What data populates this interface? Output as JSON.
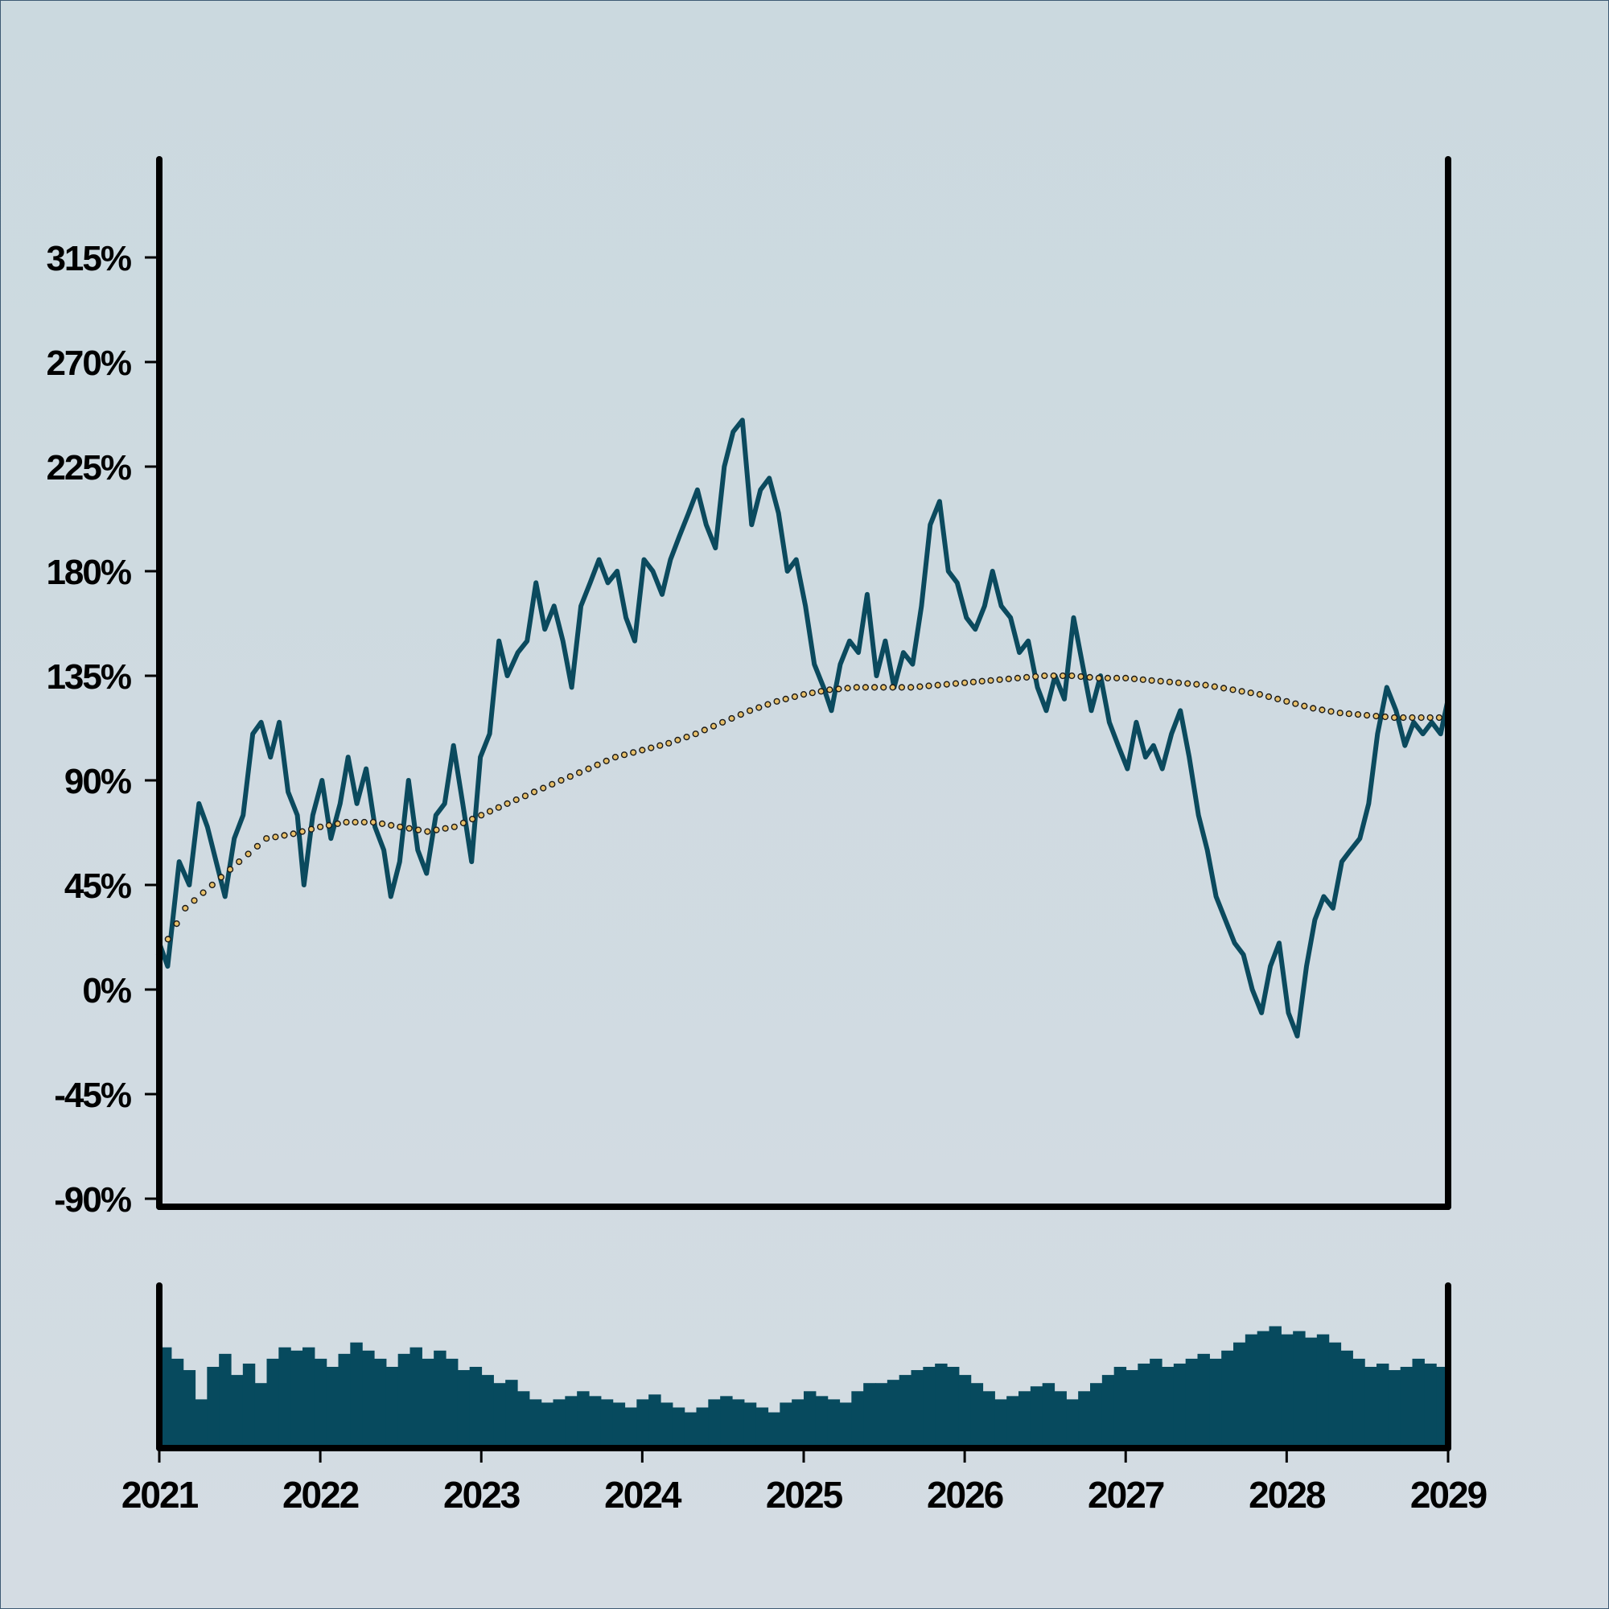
{
  "colors": {
    "background": "#cdd9df",
    "price_line": "#0b4a5e",
    "moving_average_fill": "#e8c06a",
    "moving_average_stroke": "#1a1a1a",
    "volume_bars": "#074a5e",
    "axes": "#000000"
  },
  "chart_data": [
    {
      "type": "line",
      "title": "",
      "xlabel": "",
      "ylabel": "",
      "x_range": [
        "2021-01-01",
        "2029-01-01"
      ],
      "ylim": [
        -90,
        360
      ],
      "y_ticks": [
        -90,
        -45,
        0,
        45,
        90,
        135,
        180,
        225,
        270,
        315
      ],
      "y_tick_labels": [
        "-90%",
        "-45%",
        "0%",
        "45%",
        "90%",
        "135%",
        "180%",
        "225%",
        "270%",
        "315%"
      ],
      "x_ticks": [
        "2021-01-01",
        "2022-01-01",
        "2023-01-01",
        "2024-01-01",
        "2025-01-01",
        "2026-01-01",
        "2027-01-01",
        "2028-01-01",
        "2029-01-01"
      ],
      "x_tick_labels": [
        "2021",
        "2022",
        "2023",
        "2024",
        "2025",
        "2026",
        "2027",
        "2028",
        "2029"
      ],
      "grid": false,
      "legend": "none",
      "series": [
        {
          "style": "line",
          "points": [
            [
              "2021-01-01",
              20
            ],
            [
              "2021-01-20",
              10
            ],
            [
              "2021-02-15",
              55
            ],
            [
              "2021-03-10",
              45
            ],
            [
              "2021-04-01",
              80
            ],
            [
              "2021-04-20",
              70
            ],
            [
              "2021-05-10",
              55
            ],
            [
              "2021-05-30",
              40
            ],
            [
              "2021-06-20",
              65
            ],
            [
              "2021-07-10",
              75
            ],
            [
              "2021-08-01",
              110
            ],
            [
              "2021-08-20",
              115
            ],
            [
              "2021-09-10",
              100
            ],
            [
              "2021-09-30",
              115
            ],
            [
              "2021-10-20",
              85
            ],
            [
              "2021-11-10",
              75
            ],
            [
              "2021-11-25",
              45
            ],
            [
              "2021-12-15",
              75
            ],
            [
              "2022-01-05",
              90
            ],
            [
              "2022-01-25",
              65
            ],
            [
              "2022-02-15",
              80
            ],
            [
              "2022-03-05",
              100
            ],
            [
              "2022-03-25",
              80
            ],
            [
              "2022-04-15",
              95
            ],
            [
              "2022-05-05",
              70
            ],
            [
              "2022-05-25",
              60
            ],
            [
              "2022-06-10",
              40
            ],
            [
              "2022-06-30",
              55
            ],
            [
              "2022-07-20",
              90
            ],
            [
              "2022-08-10",
              60
            ],
            [
              "2022-08-30",
              50
            ],
            [
              "2022-09-20",
              75
            ],
            [
              "2022-10-10",
              80
            ],
            [
              "2022-10-30",
              105
            ],
            [
              "2022-11-20",
              80
            ],
            [
              "2022-12-10",
              55
            ],
            [
              "2022-12-30",
              100
            ],
            [
              "2023-01-20",
              110
            ],
            [
              "2023-02-10",
              150
            ],
            [
              "2023-03-01",
              135
            ],
            [
              "2023-03-25",
              145
            ],
            [
              "2023-04-15",
              150
            ],
            [
              "2023-05-05",
              175
            ],
            [
              "2023-05-25",
              155
            ],
            [
              "2023-06-15",
              165
            ],
            [
              "2023-07-05",
              150
            ],
            [
              "2023-07-25",
              130
            ],
            [
              "2023-08-15",
              165
            ],
            [
              "2023-09-05",
              175
            ],
            [
              "2023-09-25",
              185
            ],
            [
              "2023-10-15",
              175
            ],
            [
              "2023-11-05",
              180
            ],
            [
              "2023-11-25",
              160
            ],
            [
              "2023-12-15",
              150
            ],
            [
              "2024-01-05",
              185
            ],
            [
              "2024-01-25",
              180
            ],
            [
              "2024-02-15",
              170
            ],
            [
              "2024-03-05",
              185
            ],
            [
              "2024-03-25",
              195
            ],
            [
              "2024-04-15",
              205
            ],
            [
              "2024-05-05",
              215
            ],
            [
              "2024-05-25",
              200
            ],
            [
              "2024-06-15",
              190
            ],
            [
              "2024-07-05",
              225
            ],
            [
              "2024-07-25",
              240
            ],
            [
              "2024-08-15",
              245
            ],
            [
              "2024-09-05",
              200
            ],
            [
              "2024-09-25",
              215
            ],
            [
              "2024-10-15",
              220
            ],
            [
              "2024-11-05",
              205
            ],
            [
              "2024-11-25",
              180
            ],
            [
              "2024-12-15",
              185
            ],
            [
              "2025-01-05",
              165
            ],
            [
              "2025-01-25",
              140
            ],
            [
              "2025-02-15",
              130
            ],
            [
              "2025-03-05",
              120
            ],
            [
              "2025-03-25",
              140
            ],
            [
              "2025-04-15",
              150
            ],
            [
              "2025-05-05",
              145
            ],
            [
              "2025-05-25",
              170
            ],
            [
              "2025-06-15",
              135
            ],
            [
              "2025-07-05",
              150
            ],
            [
              "2025-07-25",
              130
            ],
            [
              "2025-08-15",
              145
            ],
            [
              "2025-09-05",
              140
            ],
            [
              "2025-09-25",
              165
            ],
            [
              "2025-10-15",
              200
            ],
            [
              "2025-11-05",
              210
            ],
            [
              "2025-11-25",
              180
            ],
            [
              "2025-12-15",
              175
            ],
            [
              "2026-01-05",
              160
            ],
            [
              "2026-01-25",
              155
            ],
            [
              "2026-02-15",
              165
            ],
            [
              "2026-03-05",
              180
            ],
            [
              "2026-03-25",
              165
            ],
            [
              "2026-04-15",
              160
            ],
            [
              "2026-05-05",
              145
            ],
            [
              "2026-05-25",
              150
            ],
            [
              "2026-06-15",
              130
            ],
            [
              "2026-07-05",
              120
            ],
            [
              "2026-07-25",
              135
            ],
            [
              "2026-08-15",
              125
            ],
            [
              "2026-09-05",
              160
            ],
            [
              "2026-09-25",
              140
            ],
            [
              "2026-10-15",
              120
            ],
            [
              "2026-11-05",
              135
            ],
            [
              "2026-11-25",
              115
            ],
            [
              "2026-12-15",
              105
            ],
            [
              "2027-01-05",
              95
            ],
            [
              "2027-01-25",
              115
            ],
            [
              "2027-02-15",
              100
            ],
            [
              "2027-03-05",
              105
            ],
            [
              "2027-03-25",
              95
            ],
            [
              "2027-04-15",
              110
            ],
            [
              "2027-05-05",
              120
            ],
            [
              "2027-05-25",
              100
            ],
            [
              "2027-06-15",
              75
            ],
            [
              "2027-07-05",
              60
            ],
            [
              "2027-07-25",
              40
            ],
            [
              "2027-08-15",
              30
            ],
            [
              "2027-09-05",
              20
            ],
            [
              "2027-09-25",
              15
            ],
            [
              "2027-10-15",
              0
            ],
            [
              "2027-11-05",
              -10
            ],
            [
              "2027-11-25",
              10
            ],
            [
              "2027-12-15",
              20
            ],
            [
              "2028-01-05",
              -10
            ],
            [
              "2028-01-25",
              -20
            ],
            [
              "2028-02-15",
              10
            ],
            [
              "2028-03-05",
              30
            ],
            [
              "2028-03-25",
              40
            ],
            [
              "2028-04-15",
              35
            ],
            [
              "2028-05-05",
              55
            ],
            [
              "2028-05-25",
              60
            ],
            [
              "2028-06-15",
              65
            ],
            [
              "2028-07-05",
              80
            ],
            [
              "2028-07-25",
              110
            ],
            [
              "2028-08-15",
              130
            ],
            [
              "2028-09-05",
              120
            ],
            [
              "2028-09-25",
              105
            ],
            [
              "2028-10-15",
              115
            ],
            [
              "2028-11-05",
              110
            ],
            [
              "2028-11-25",
              115
            ],
            [
              "2028-12-15",
              110
            ],
            [
              "2029-01-01",
              125
            ]
          ]
        },
        {
          "style": "dotted markers",
          "points": [
            [
              "2021-01-01",
              15
            ],
            [
              "2021-03-01",
              35
            ],
            [
              "2021-05-01",
              45
            ],
            [
              "2021-07-01",
              55
            ],
            [
              "2021-09-01",
              65
            ],
            [
              "2021-11-01",
              67
            ],
            [
              "2022-01-01",
              70
            ],
            [
              "2022-03-01",
              72
            ],
            [
              "2022-05-01",
              72
            ],
            [
              "2022-07-01",
              70
            ],
            [
              "2022-09-01",
              68
            ],
            [
              "2022-11-01",
              70
            ],
            [
              "2023-01-01",
              75
            ],
            [
              "2023-03-01",
              80
            ],
            [
              "2023-05-01",
              85
            ],
            [
              "2023-07-01",
              90
            ],
            [
              "2023-09-01",
              95
            ],
            [
              "2023-11-01",
              100
            ],
            [
              "2024-01-01",
              103
            ],
            [
              "2024-03-01",
              106
            ],
            [
              "2024-05-01",
              110
            ],
            [
              "2024-07-01",
              115
            ],
            [
              "2024-09-01",
              120
            ],
            [
              "2024-11-01",
              124
            ],
            [
              "2025-01-01",
              127
            ],
            [
              "2025-03-01",
              129
            ],
            [
              "2025-05-01",
              130
            ],
            [
              "2025-07-01",
              130
            ],
            [
              "2025-09-01",
              130
            ],
            [
              "2025-11-01",
              131
            ],
            [
              "2026-01-01",
              132
            ],
            [
              "2026-03-01",
              133
            ],
            [
              "2026-05-01",
              134
            ],
            [
              "2026-07-01",
              135
            ],
            [
              "2026-09-01",
              135
            ],
            [
              "2026-11-01",
              134
            ],
            [
              "2027-01-01",
              134
            ],
            [
              "2027-03-01",
              133
            ],
            [
              "2027-05-01",
              132
            ],
            [
              "2027-07-01",
              131
            ],
            [
              "2027-09-01",
              129
            ],
            [
              "2027-11-01",
              127
            ],
            [
              "2028-01-01",
              124
            ],
            [
              "2028-03-01",
              121
            ],
            [
              "2028-05-01",
              119
            ],
            [
              "2028-07-01",
              118
            ],
            [
              "2028-09-01",
              117
            ],
            [
              "2028-11-01",
              117
            ],
            [
              "2029-01-01",
              117
            ]
          ]
        }
      ]
    },
    {
      "type": "bar",
      "title": "",
      "xlabel": "",
      "ylabel": "",
      "x_range": [
        "2021-01-01",
        "2029-01-01"
      ],
      "note_values": "relative volume level per month, 0-1 scale of panel height",
      "values": [
        0.62,
        0.55,
        0.48,
        0.3,
        0.5,
        0.58,
        0.45,
        0.52,
        0.4,
        0.55,
        0.62,
        0.6,
        0.62,
        0.55,
        0.5,
        0.58,
        0.65,
        0.6,
        0.55,
        0.5,
        0.58,
        0.62,
        0.55,
        0.6,
        0.55,
        0.48,
        0.5,
        0.45,
        0.4,
        0.42,
        0.35,
        0.3,
        0.28,
        0.3,
        0.32,
        0.35,
        0.32,
        0.3,
        0.28,
        0.25,
        0.3,
        0.33,
        0.28,
        0.25,
        0.22,
        0.25,
        0.3,
        0.32,
        0.3,
        0.28,
        0.25,
        0.22,
        0.28,
        0.3,
        0.35,
        0.32,
        0.3,
        0.28,
        0.35,
        0.4,
        0.4,
        0.42,
        0.45,
        0.48,
        0.5,
        0.52,
        0.5,
        0.45,
        0.4,
        0.35,
        0.3,
        0.32,
        0.35,
        0.38,
        0.4,
        0.35,
        0.3,
        0.35,
        0.4,
        0.45,
        0.5,
        0.48,
        0.52,
        0.55,
        0.5,
        0.52,
        0.55,
        0.58,
        0.55,
        0.6,
        0.65,
        0.7,
        0.72,
        0.75,
        0.7,
        0.72,
        0.68,
        0.7,
        0.65,
        0.6,
        0.55,
        0.5,
        0.52,
        0.48,
        0.5,
        0.55,
        0.52,
        0.5
      ]
    }
  ]
}
